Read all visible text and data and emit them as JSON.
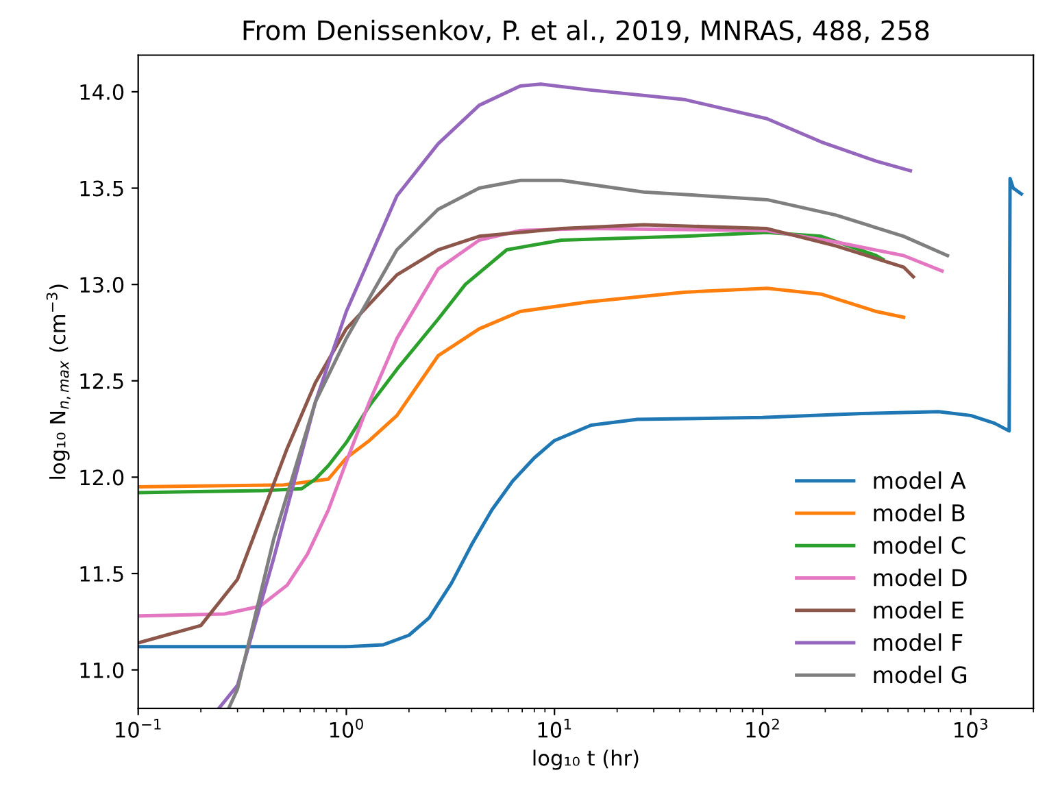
{
  "chart_data": {
    "type": "line",
    "title": "From Denissenkov, P. et al., 2019, MNRAS, 488, 258",
    "xlabel": "log₁₀ t (hr)",
    "ylabel": "log₁₀ N$_{n,max}$ (cm$^{−3}$)",
    "log": "x",
    "xlim": [
      0.1,
      2000
    ],
    "ylim": [
      10.8,
      14.19
    ],
    "xticks": [
      {
        "value": 0.1,
        "label": "10$^{−1}$"
      },
      {
        "value": 1,
        "label": "10$^{0}$"
      },
      {
        "value": 10,
        "label": "10$^{1}$"
      },
      {
        "value": 100,
        "label": "10$^{2}$"
      },
      {
        "value": 1000,
        "label": "10$^{3}$"
      }
    ],
    "yticks": [
      {
        "value": 11.0,
        "label": "11.0"
      },
      {
        "value": 11.5,
        "label": "11.5"
      },
      {
        "value": 12.0,
        "label": "12.0"
      },
      {
        "value": 12.5,
        "label": "12.5"
      },
      {
        "value": 13.0,
        "label": "13.0"
      },
      {
        "value": 13.5,
        "label": "13.5"
      },
      {
        "value": 14.0,
        "label": "14.0"
      }
    ],
    "grid": false,
    "legend": "bottom right",
    "marker": "none",
    "line_style": "solid",
    "series": [
      {
        "name": "model A",
        "color": "#1f77b4",
        "x": [
          0.1,
          1.0,
          1.5,
          2.0,
          2.5,
          3.2,
          4.0,
          5.0,
          6.3,
          8,
          10,
          15,
          25,
          100,
          300,
          700,
          1000,
          1300,
          1530,
          1545,
          1600,
          1750
        ],
        "values": [
          11.12,
          11.12,
          11.13,
          11.18,
          11.27,
          11.45,
          11.65,
          11.83,
          11.98,
          12.1,
          12.19,
          12.27,
          12.3,
          12.31,
          12.33,
          12.34,
          12.32,
          12.28,
          12.24,
          13.55,
          13.5,
          13.47
        ]
      },
      {
        "name": "model B",
        "color": "#ff7f0e",
        "x": [
          0.1,
          0.5,
          0.82,
          1.0,
          1.29,
          1.75,
          2.76,
          4.35,
          6.85,
          14.6,
          42,
          105,
          191,
          351,
          476
        ],
        "values": [
          11.95,
          11.96,
          11.99,
          12.1,
          12.19,
          12.32,
          12.63,
          12.77,
          12.86,
          12.91,
          12.96,
          12.98,
          12.95,
          12.86,
          12.83
        ]
      },
      {
        "name": "model C",
        "color": "#2ca02c",
        "x": [
          0.1,
          0.4,
          0.61,
          0.71,
          0.82,
          1.0,
          1.29,
          1.75,
          2.76,
          3.73,
          5.9,
          10.8,
          42,
          105,
          191,
          351,
          379
        ],
        "values": [
          11.92,
          11.93,
          11.94,
          11.99,
          12.06,
          12.18,
          12.37,
          12.56,
          12.82,
          13.0,
          13.18,
          13.23,
          13.25,
          13.27,
          13.25,
          13.15,
          13.13
        ]
      },
      {
        "name": "model D",
        "color": "#e377c2",
        "x": [
          0.1,
          0.26,
          0.385,
          0.52,
          0.65,
          0.82,
          1.0,
          1.29,
          1.75,
          2.76,
          4.35,
          6.85,
          14.6,
          105,
          225,
          476,
          728
        ],
        "values": [
          11.28,
          11.29,
          11.33,
          11.44,
          11.6,
          11.83,
          12.08,
          12.39,
          12.72,
          13.08,
          13.23,
          13.28,
          13.29,
          13.28,
          13.22,
          13.15,
          13.07
        ]
      },
      {
        "name": "model E",
        "color": "#8c564b",
        "x": [
          0.1,
          0.2,
          0.3,
          0.52,
          0.71,
          1.0,
          1.75,
          2.76,
          4.35,
          10.8,
          26.8,
          105,
          225,
          476,
          530
        ],
        "values": [
          11.14,
          11.23,
          11.47,
          12.15,
          12.49,
          12.77,
          13.05,
          13.18,
          13.25,
          13.29,
          13.31,
          13.29,
          13.2,
          13.09,
          13.04
        ]
      },
      {
        "name": "model F",
        "color": "#9467bd",
        "x": [
          0.244,
          0.3,
          0.448,
          0.71,
          1.0,
          1.75,
          2.76,
          4.35,
          6.85,
          8.6,
          14.6,
          42,
          105,
          191,
          351,
          513
        ],
        "values": [
          10.8,
          10.92,
          11.58,
          12.39,
          12.86,
          13.46,
          13.73,
          13.93,
          14.03,
          14.04,
          14.01,
          13.96,
          13.86,
          13.74,
          13.64,
          13.59
        ]
      },
      {
        "name": "model G",
        "color": "#7f7f7f",
        "x": [
          0.272,
          0.3,
          0.448,
          0.71,
          1.0,
          1.75,
          2.76,
          4.35,
          6.85,
          10.8,
          26.8,
          105,
          225,
          476,
          773
        ],
        "values": [
          10.8,
          10.9,
          11.68,
          12.39,
          12.72,
          13.18,
          13.39,
          13.5,
          13.54,
          13.54,
          13.48,
          13.44,
          13.36,
          13.25,
          13.15
        ]
      }
    ]
  }
}
